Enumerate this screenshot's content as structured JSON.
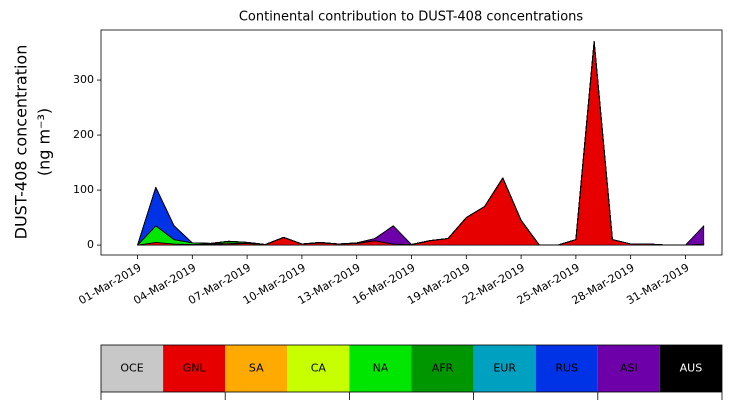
{
  "chart_data": {
    "type": "stacked_area",
    "title": "Continental contribution to DUST-408 concentrations",
    "y_label": [
      "DUST-408 concentration",
      "(ng m⁻³)"
    ],
    "x": [
      "2019-03-01",
      "2019-03-02",
      "2019-03-03",
      "2019-03-04",
      "2019-03-05",
      "2019-03-06",
      "2019-03-07",
      "2019-03-08",
      "2019-03-09",
      "2019-03-10",
      "2019-03-11",
      "2019-03-12",
      "2019-03-13",
      "2019-03-14",
      "2019-03-15",
      "2019-03-16",
      "2019-03-17",
      "2019-03-18",
      "2019-03-19",
      "2019-03-20",
      "2019-03-21",
      "2019-03-22",
      "2019-03-23",
      "2019-03-24",
      "2019-03-25",
      "2019-03-26",
      "2019-03-27",
      "2019-03-28",
      "2019-03-29",
      "2019-03-30",
      "2019-03-31",
      "2019-04-01"
    ],
    "xlim": [
      "2019-02-27",
      "2019-04-02"
    ],
    "xticks": [
      {
        "value": "2019-03-01",
        "label": "01-Mar-2019"
      },
      {
        "value": "2019-03-04",
        "label": "04-Mar-2019"
      },
      {
        "value": "2019-03-07",
        "label": "07-Mar-2019"
      },
      {
        "value": "2019-03-10",
        "label": "10-Mar-2019"
      },
      {
        "value": "2019-03-13",
        "label": "13-Mar-2019"
      },
      {
        "value": "2019-03-16",
        "label": "16-Mar-2019"
      },
      {
        "value": "2019-03-19",
        "label": "19-Mar-2019"
      },
      {
        "value": "2019-03-22",
        "label": "22-Mar-2019"
      },
      {
        "value": "2019-03-25",
        "label": "25-Mar-2019"
      },
      {
        "value": "2019-03-28",
        "label": "28-Mar-2019"
      },
      {
        "value": "2019-03-31",
        "label": "31-Mar-2019"
      }
    ],
    "ylim": [
      -18,
      391
    ],
    "yticks": [
      0,
      100,
      200,
      300
    ],
    "series": [
      {
        "name": "OCE",
        "color": "#c8c8c8",
        "values": [
          0,
          0,
          0,
          0,
          0,
          0,
          0,
          0,
          0,
          0,
          0,
          0,
          0,
          0,
          0,
          0,
          0,
          0,
          0,
          0,
          0,
          0,
          0,
          0,
          0,
          0,
          0,
          0,
          0,
          0,
          0,
          0
        ]
      },
      {
        "name": "GNL",
        "color": "#e60000",
        "values": [
          0,
          5,
          2,
          1,
          1,
          2,
          3,
          1,
          14,
          2,
          4,
          2,
          3,
          8,
          2,
          1,
          8,
          12,
          50,
          70,
          122,
          45,
          0,
          0,
          10,
          370,
          10,
          2,
          2,
          0,
          0,
          2
        ]
      },
      {
        "name": "SA",
        "color": "#ffaa00",
        "values": [
          0,
          0,
          0,
          0,
          0,
          0,
          0,
          0,
          0,
          0,
          0,
          0,
          0,
          0,
          0,
          0,
          0,
          0,
          0,
          0,
          0,
          0,
          0,
          0,
          0,
          0,
          0,
          0,
          0,
          0,
          0,
          0
        ]
      },
      {
        "name": "CA",
        "color": "#c8ff00",
        "values": [
          0,
          0,
          0,
          0,
          1,
          2,
          0,
          0,
          0,
          0,
          0,
          0,
          0,
          0,
          0,
          0,
          0,
          0,
          0,
          0,
          0,
          0,
          0,
          0,
          0,
          0,
          0,
          0,
          0,
          0,
          0,
          0
        ]
      },
      {
        "name": "NA",
        "color": "#00e600",
        "values": [
          0,
          30,
          8,
          3,
          1,
          3,
          2,
          0,
          0,
          0,
          1,
          0,
          1,
          0,
          0,
          0,
          0,
          0,
          0,
          0,
          0,
          0,
          0,
          0,
          0,
          0,
          0,
          0,
          0,
          0,
          0,
          0
        ]
      },
      {
        "name": "AFR",
        "color": "#009600",
        "values": [
          0,
          0,
          0,
          0,
          0,
          0,
          0,
          0,
          0,
          0,
          0,
          0,
          0,
          0,
          0,
          0,
          0,
          0,
          0,
          0,
          0,
          0,
          0,
          0,
          0,
          0,
          0,
          0,
          0,
          0,
          0,
          0
        ]
      },
      {
        "name": "EUR",
        "color": "#00a0c0",
        "values": [
          0,
          0,
          0,
          0,
          0,
          0,
          0,
          0,
          0,
          0,
          0,
          0,
          0,
          0,
          0,
          0,
          0,
          0,
          0,
          0,
          0,
          0,
          0,
          0,
          0,
          0,
          0,
          0,
          0,
          0,
          0,
          0
        ]
      },
      {
        "name": "RUS",
        "color": "#0032e6",
        "values": [
          0,
          70,
          25,
          0,
          0,
          0,
          0,
          0,
          0,
          0,
          0,
          0,
          0,
          0,
          0,
          0,
          0,
          0,
          0,
          0,
          0,
          0,
          0,
          0,
          0,
          0,
          0,
          0,
          0,
          0,
          0,
          0
        ]
      },
      {
        "name": "ASI",
        "color": "#6e00aa",
        "values": [
          0,
          0,
          0,
          0,
          0,
          0,
          0,
          0,
          0,
          0,
          0,
          0,
          0,
          4,
          33,
          0,
          0,
          0,
          0,
          0,
          0,
          0,
          0,
          0,
          0,
          0,
          0,
          0,
          0,
          0,
          0,
          33
        ]
      },
      {
        "name": "AUS",
        "color": "#000000",
        "values": [
          0,
          0,
          0,
          0,
          0,
          0,
          0,
          0,
          0,
          0,
          0,
          0,
          0,
          0,
          0,
          0,
          0,
          0,
          0,
          0,
          0,
          0,
          0,
          0,
          0,
          0,
          0,
          0,
          0,
          0,
          0,
          0
        ]
      }
    ]
  }
}
